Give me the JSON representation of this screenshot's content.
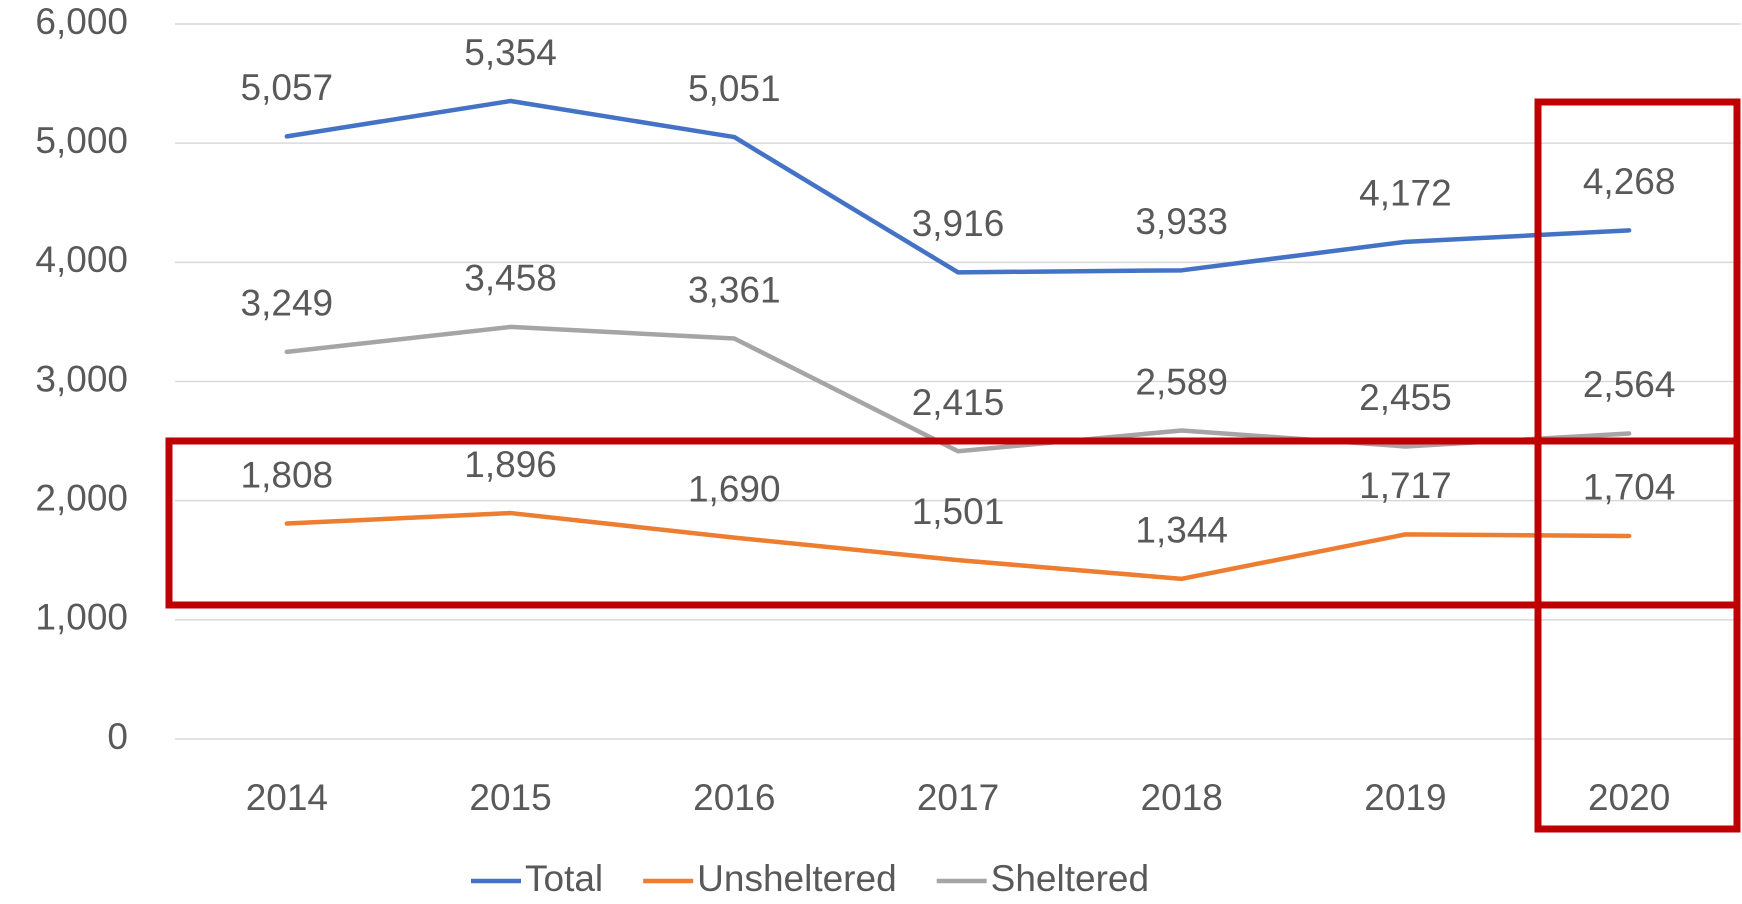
{
  "chart_data": {
    "type": "line",
    "categories": [
      "2014",
      "2015",
      "2016",
      "2017",
      "2018",
      "2019",
      "2020"
    ],
    "series": [
      {
        "name": "Total",
        "color": "#4472c4",
        "values": [
          5057,
          5354,
          5051,
          3916,
          3933,
          4172,
          4268
        ],
        "value_labels": [
          "5,057",
          "5,354",
          "5,051",
          "3,916",
          "3,933",
          "4,172",
          "4,268"
        ]
      },
      {
        "name": "Unsheltered",
        "color": "#ed7d31",
        "values": [
          1808,
          1896,
          1690,
          1501,
          1344,
          1717,
          1704
        ],
        "value_labels": [
          "1,808",
          "1,896",
          "1,690",
          "1,501",
          "1,344",
          "1,717",
          "1,704"
        ]
      },
      {
        "name": "Sheltered",
        "color": "#a5a5a5",
        "values": [
          3249,
          3458,
          3361,
          2415,
          2589,
          2455,
          2564
        ],
        "value_labels": [
          "3,249",
          "3,458",
          "3,361",
          "2,415",
          "2,589",
          "2,455",
          "2,564"
        ]
      }
    ],
    "ylim": [
      0,
      6000
    ],
    "yticks": [
      0,
      {
        "value": 1000,
        "label": "1,000"
      },
      {
        "value": 2000,
        "label": "2,000"
      },
      {
        "value": 3000,
        "label": "3,000"
      },
      {
        "value": 4000,
        "label": "4,000"
      },
      {
        "value": 5000,
        "label": "5,000"
      },
      {
        "value": 6000,
        "label": "6,000"
      }
    ],
    "grid": true,
    "legend": "bottom"
  }
}
